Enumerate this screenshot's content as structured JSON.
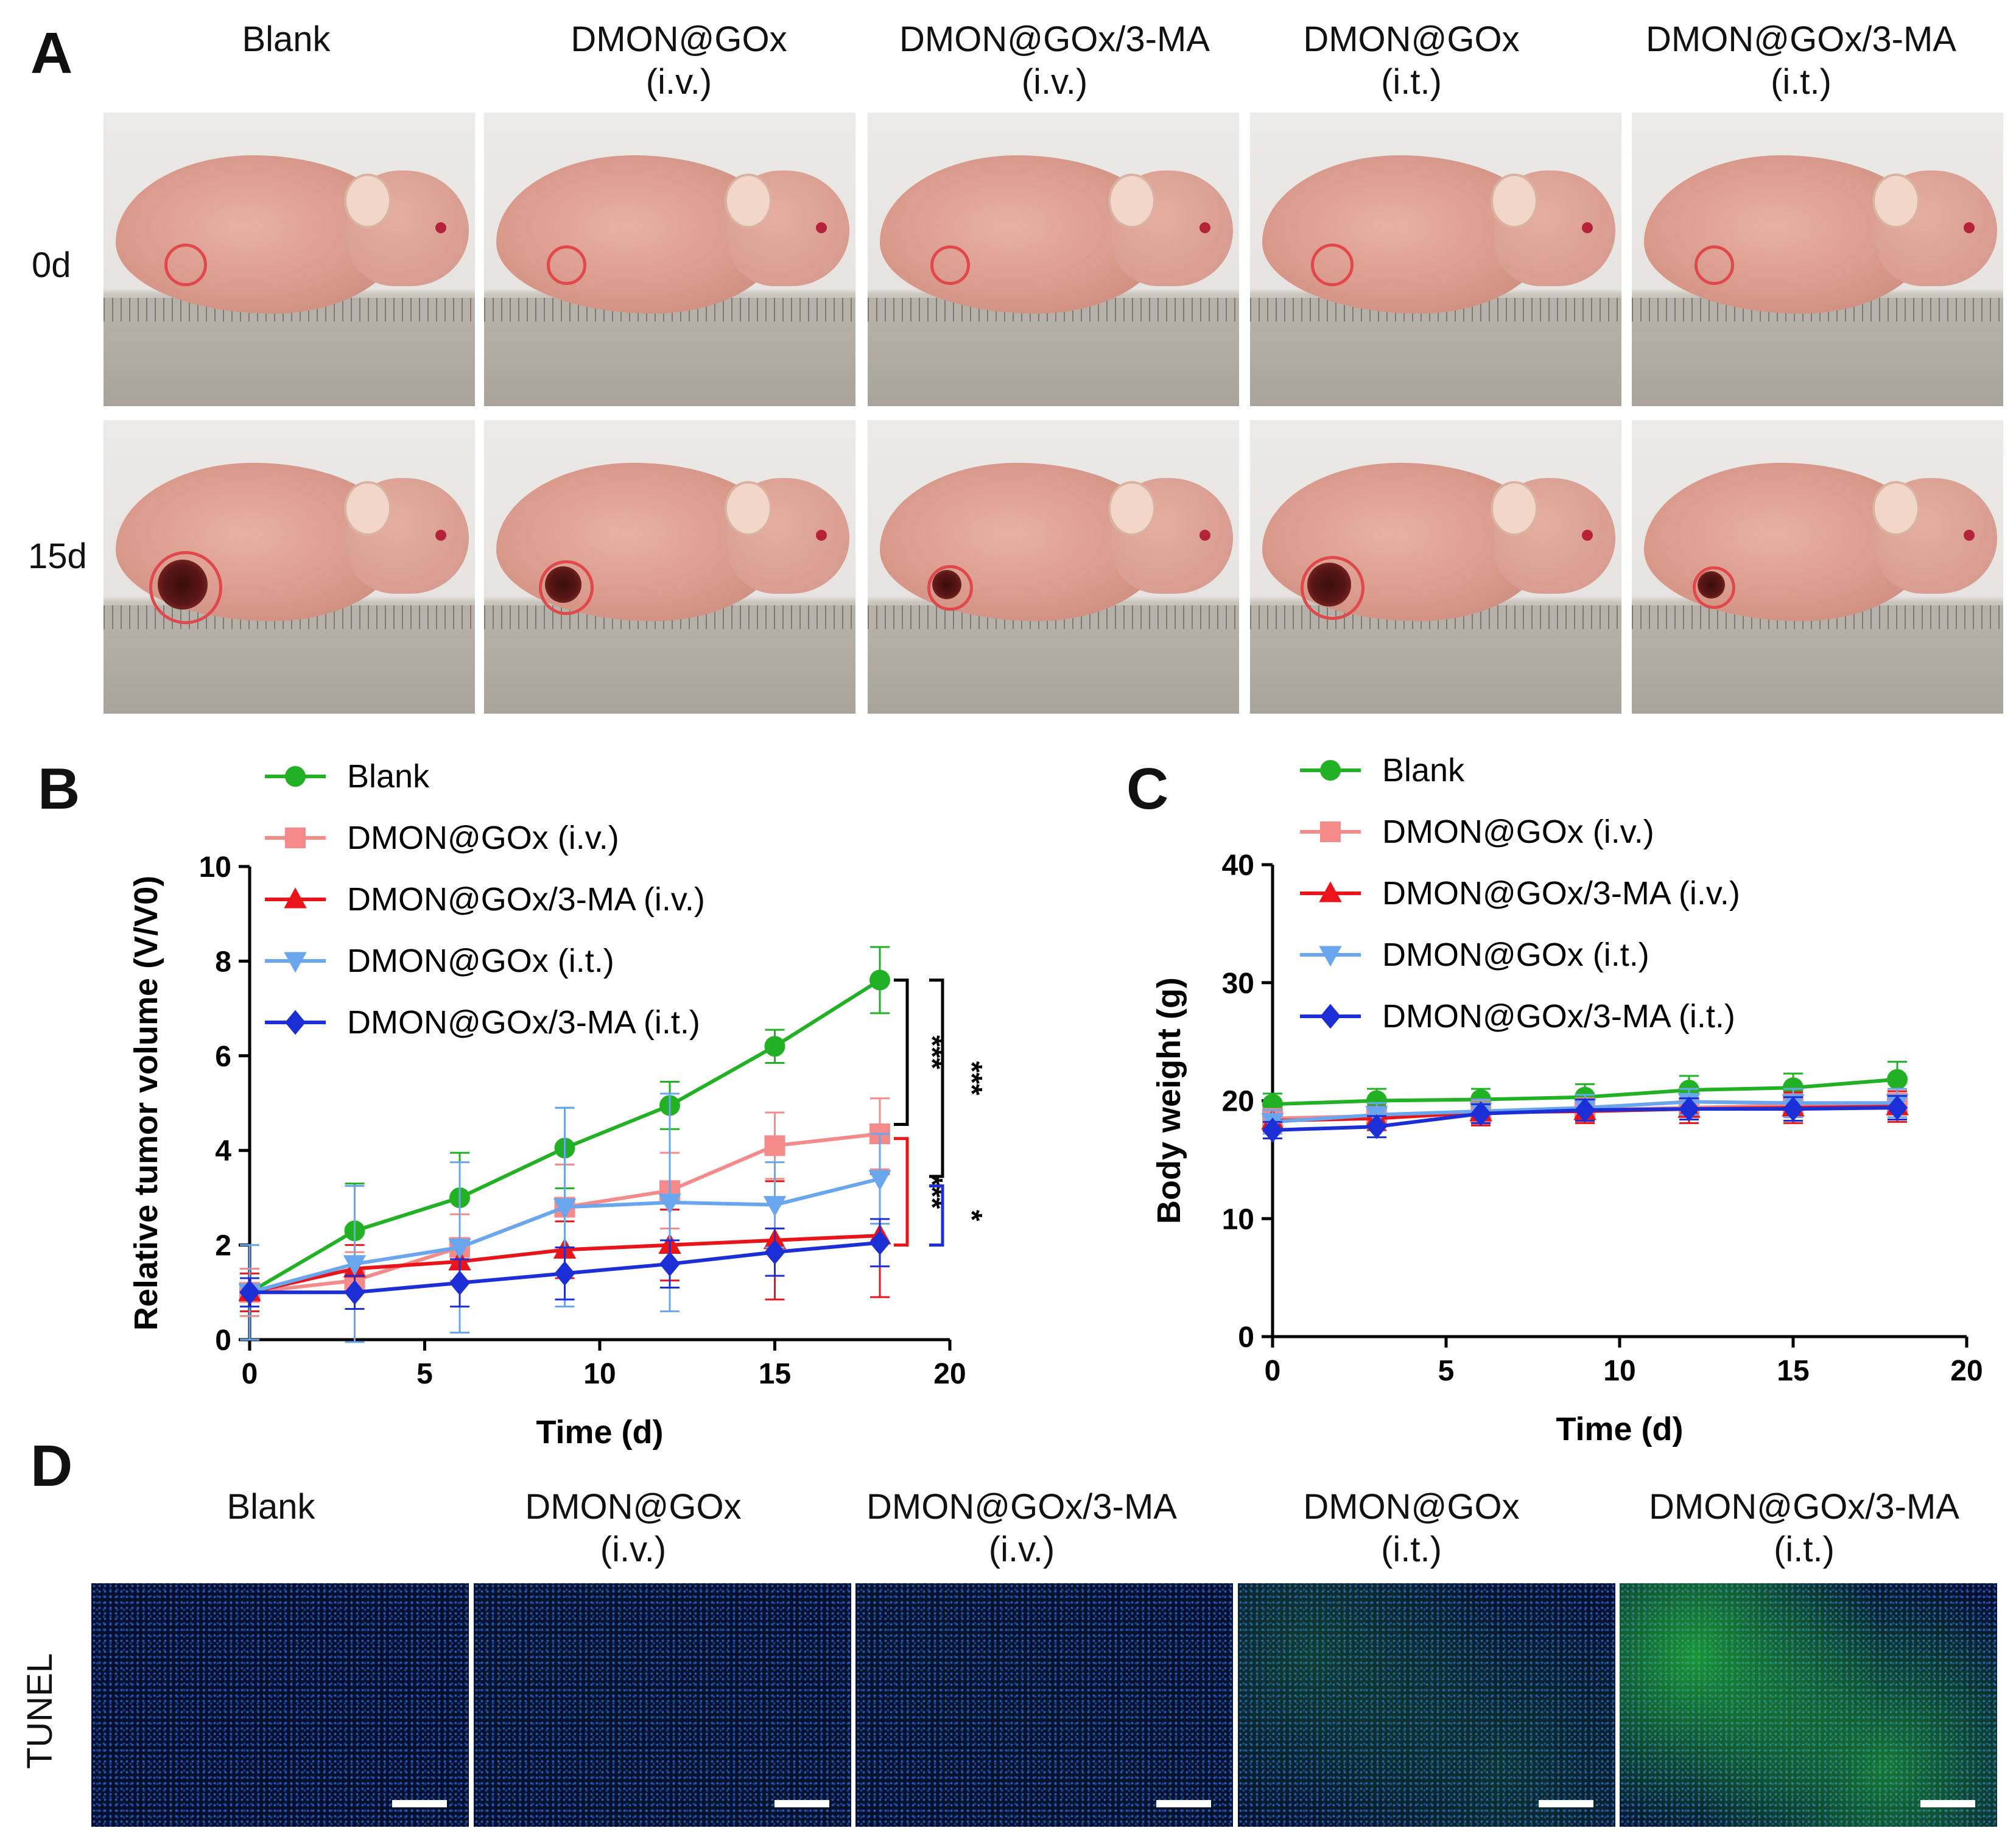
{
  "panel_letters": {
    "a": "A",
    "b": "B",
    "c": "C",
    "d": "D"
  },
  "panel_a": {
    "columns": [
      {
        "line1": "Blank",
        "line2": ""
      },
      {
        "line1": "DMON@GOx",
        "line2": "(i.v.)"
      },
      {
        "line1": "DMON@GOx/3-MA",
        "line2": "(i.v.)"
      },
      {
        "line1": "DMON@GOx",
        "line2": "(i.t.)"
      },
      {
        "line1": "DMON@GOx/3-MA",
        "line2": "(i.t.)"
      }
    ],
    "rows": [
      "0d",
      "15d"
    ]
  },
  "panel_d": {
    "columns": [
      {
        "line1": "Blank",
        "line2": ""
      },
      {
        "line1": "DMON@GOx",
        "line2": "(i.v.)"
      },
      {
        "line1": "DMON@GOx/3-MA",
        "line2": "(i.v.)"
      },
      {
        "line1": "DMON@GOx",
        "line2": "(i.t.)"
      },
      {
        "line1": "DMON@GOx/3-MA",
        "line2": "(i.t.)"
      }
    ],
    "row_label": "TUNEL"
  },
  "colors": {
    "blank": "#22b024",
    "dmon_gox_iv": "#f58a8a",
    "dmon_gox_3ma_iv": "#e8141a",
    "dmon_gox_it": "#6aa6ee",
    "dmon_gox_3ma_it": "#1c2fd6"
  },
  "chart_data": [
    {
      "type": "line",
      "panel": "B",
      "xlabel": "Time (d)",
      "ylabel": "Relative tumor volume (V/V0)",
      "xlim": [
        0,
        20
      ],
      "ylim": [
        0,
        10
      ],
      "xticks": [
        0,
        5,
        10,
        15,
        20
      ],
      "yticks": [
        0,
        2,
        4,
        6,
        8,
        10
      ],
      "x": [
        0,
        3,
        6,
        9,
        12,
        15,
        18
      ],
      "series": [
        {
          "name": "Blank",
          "marker": "circle",
          "values": [
            1.0,
            2.3,
            3.0,
            4.05,
            4.95,
            6.2,
            7.6
          ],
          "errors": [
            0.5,
            1.0,
            0.95,
            0.85,
            0.5,
            0.35,
            0.7
          ]
        },
        {
          "name": "DMON@GOx (i.v.)",
          "marker": "square",
          "values": [
            1.0,
            1.25,
            1.95,
            2.8,
            3.15,
            4.1,
            4.35
          ],
          "errors": [
            0.5,
            0.6,
            0.7,
            0.9,
            0.8,
            0.7,
            0.75
          ]
        },
        {
          "name": "DMON@GOx/3-MA (i.v.)",
          "marker": "triangle-up",
          "values": [
            1.0,
            1.5,
            1.65,
            1.9,
            2.0,
            2.1,
            2.2
          ],
          "errors": [
            0.4,
            0.5,
            0.45,
            0.6,
            0.75,
            1.25,
            1.3
          ]
        },
        {
          "name": "DMON@GOx (i.t.)",
          "marker": "triangle-down",
          "values": [
            1.0,
            1.6,
            1.95,
            2.8,
            2.9,
            2.85,
            3.4
          ],
          "errors": [
            1.0,
            1.65,
            1.8,
            2.1,
            2.3,
            0.9,
            0.95
          ]
        },
        {
          "name": "DMON@GOx/3-MA (i.t.)",
          "marker": "diamond",
          "values": [
            1.0,
            1.0,
            1.2,
            1.4,
            1.6,
            1.85,
            2.05
          ],
          "errors": [
            0.3,
            0.35,
            0.5,
            0.55,
            0.5,
            0.5,
            0.5
          ]
        }
      ],
      "significance": [
        {
          "label": "***",
          "between": [
            "Blank",
            "DMON@GOx (i.v.)"
          ]
        },
        {
          "label": "***",
          "between": [
            "Blank",
            "DMON@GOx (i.t.)"
          ]
        },
        {
          "label": "***",
          "between": [
            "DMON@GOx (i.v.)",
            "DMON@GOx/3-MA (i.v.)"
          ]
        },
        {
          "label": "*",
          "between": [
            "DMON@GOx (i.t.)",
            "DMON@GOx/3-MA (i.t.)"
          ]
        }
      ]
    },
    {
      "type": "line",
      "panel": "C",
      "xlabel": "Time (d)",
      "ylabel": "Body weight (g)",
      "xlim": [
        0,
        20
      ],
      "ylim": [
        0,
        40
      ],
      "xticks": [
        0,
        5,
        10,
        15,
        20
      ],
      "yticks": [
        0,
        10,
        20,
        30,
        40
      ],
      "x": [
        0,
        3,
        6,
        9,
        12,
        15,
        18
      ],
      "series": [
        {
          "name": "Blank",
          "marker": "circle",
          "values": [
            19.7,
            20.0,
            20.1,
            20.3,
            20.9,
            21.1,
            21.8
          ],
          "errors": [
            0.9,
            1.0,
            0.9,
            1.1,
            1.2,
            1.2,
            1.5
          ]
        },
        {
          "name": "DMON@GOx (i.v.)",
          "marker": "square",
          "values": [
            18.5,
            18.7,
            19.0,
            19.2,
            19.4,
            19.6,
            19.8
          ],
          "errors": [
            0.8,
            0.8,
            1.0,
            1.0,
            1.0,
            1.0,
            1.2
          ]
        },
        {
          "name": "DMON@GOx/3-MA (i.v.)",
          "marker": "triangle-up",
          "values": [
            18.3,
            18.5,
            19.0,
            19.1,
            19.3,
            19.4,
            19.5
          ],
          "errors": [
            0.9,
            1.0,
            1.1,
            1.0,
            1.2,
            1.3,
            1.3
          ]
        },
        {
          "name": "DMON@GOx (i.t.)",
          "marker": "triangle-down",
          "values": [
            18.2,
            18.8,
            19.1,
            19.4,
            19.9,
            19.8,
            19.8
          ],
          "errors": [
            1.0,
            1.0,
            1.0,
            1.1,
            1.1,
            1.2,
            1.2
          ]
        },
        {
          "name": "DMON@GOx/3-MA (i.t.)",
          "marker": "diamond",
          "values": [
            17.5,
            17.8,
            18.9,
            19.2,
            19.3,
            19.3,
            19.4
          ],
          "errors": [
            0.7,
            0.9,
            0.8,
            0.9,
            0.9,
            1.0,
            1.0
          ]
        }
      ]
    }
  ]
}
